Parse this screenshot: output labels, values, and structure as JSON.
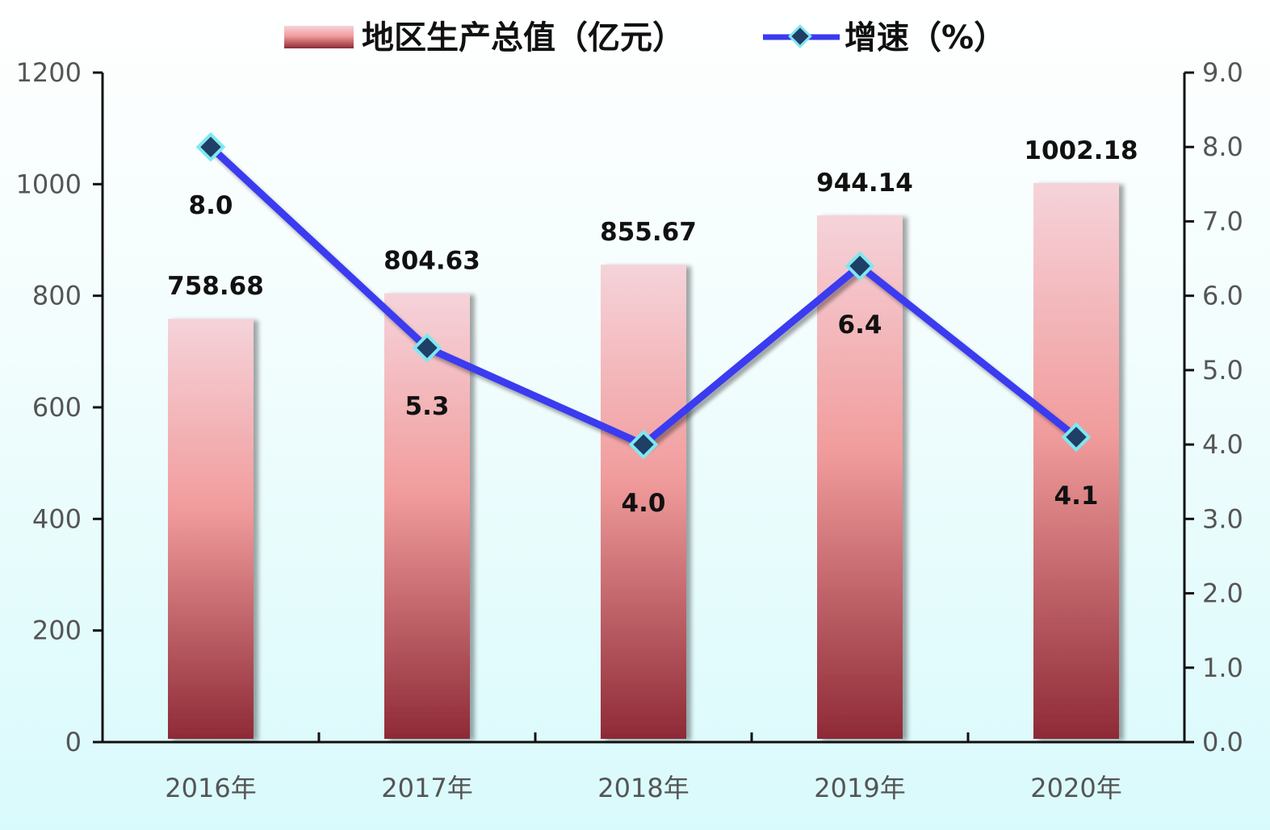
{
  "chart_data": {
    "type": "bar",
    "categories": [
      "2016年",
      "2017年",
      "2018年",
      "2019年",
      "2020年"
    ],
    "series": [
      {
        "name": "地区生产总值（亿元）",
        "type": "bar",
        "axis": "left",
        "values": [
          758.68,
          804.63,
          855.67,
          944.14,
          1002.18
        ],
        "labels": [
          "758.68",
          "804.63",
          "855.67",
          "944.14",
          "1002.18"
        ]
      },
      {
        "name": "增速（%）",
        "type": "line",
        "axis": "right",
        "values": [
          8.0,
          5.3,
          4.0,
          6.4,
          4.1
        ],
        "labels": [
          "8.0",
          "5.3",
          "4.0",
          "6.4",
          "4.1"
        ]
      }
    ],
    "y_left": {
      "min": 0,
      "max": 1200,
      "ticks": [
        "0",
        "200",
        "400",
        "600",
        "800",
        "1000",
        "1200"
      ]
    },
    "y_right": {
      "min": 0,
      "max": 9,
      "ticks": [
        "0.0",
        "1.0",
        "2.0",
        "3.0",
        "4.0",
        "5.0",
        "6.0",
        "7.0",
        "8.0",
        "9.0"
      ]
    },
    "legend_position": "top",
    "grid": false,
    "colors": {
      "bar_top": "#f5d3da",
      "bar_mid": "#f19c9c",
      "bar_bottom": "#8e2a36",
      "line": "#3a3af0",
      "marker_fill": "#1f3f66",
      "marker_stroke": "#7fe8f0",
      "axis": "#111111"
    }
  }
}
